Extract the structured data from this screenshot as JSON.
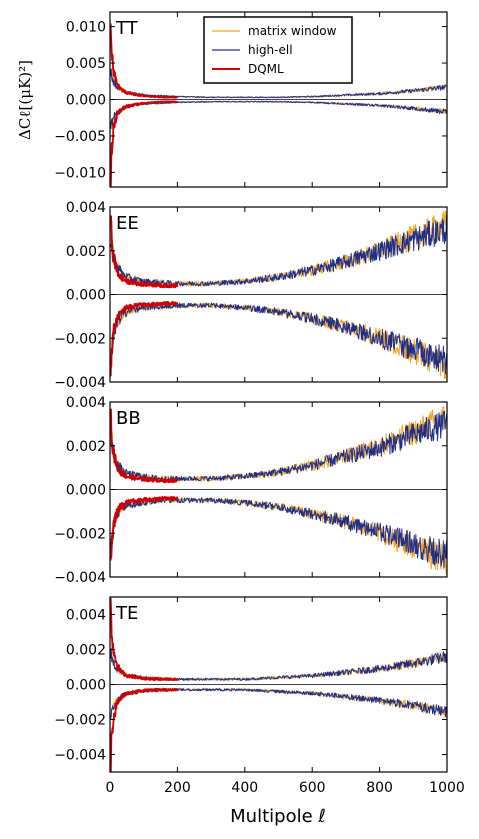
{
  "chart_data": {
    "type": "line",
    "xlabel": "Multipole ℓ",
    "ylabel": "ΔCℓ[(μK)²]",
    "xlim": [
      0,
      1000
    ],
    "xticks": [
      "0",
      "200",
      "400",
      "600",
      "800",
      "1000"
    ],
    "grid": false,
    "legend": {
      "placement": "top-center (TT panel)",
      "entries": [
        "matrix window",
        "high-ell",
        "DQML"
      ]
    },
    "colors": {
      "matrix window": "#f5a623",
      "high-ell": "#1f2f8c",
      "DQML": "#cc0000"
    },
    "panels": [
      {
        "label": "TT",
        "ylim": [
          -0.012,
          0.012
        ],
        "yticks": [
          0.01,
          0.005,
          0.0,
          -0.005,
          -0.01
        ],
        "ytick_labels": [
          "0.010",
          "0.005",
          "0.000",
          "−0.005",
          "−0.010"
        ],
        "series": [
          {
            "name": "high-ell",
            "x": [
              2,
              10,
              20,
              40,
              60,
              100,
              150,
              200,
              300,
              400,
              500,
              600,
              700,
              800,
              900,
              1000
            ],
            "values": [
              0.004,
              0.0025,
              0.0018,
              0.0012,
              0.0009,
              0.0006,
              0.0005,
              0.0004,
              0.0003,
              0.0003,
              0.0003,
              0.0004,
              0.0006,
              0.0008,
              0.0012,
              0.0017
            ]
          },
          {
            "name": "matrix window",
            "x": [
              2,
              10,
              20,
              40,
              60,
              100,
              150,
              200,
              300,
              400,
              500,
              600,
              700,
              800,
              900,
              1000
            ],
            "values": [
              0.004,
              0.0025,
              0.0018,
              0.0012,
              0.0009,
              0.0006,
              0.0005,
              0.0004,
              0.0003,
              0.0003,
              0.0003,
              0.0004,
              0.0006,
              0.0008,
              0.0012,
              0.0017
            ]
          },
          {
            "name": "DQML",
            "x": [
              2,
              5,
              10,
              20,
              30,
              50,
              80,
              120,
              160,
              200
            ],
            "values": [
              0.011,
              0.007,
              0.004,
              0.0022,
              0.0015,
              0.0009,
              0.0006,
              0.0004,
              0.0003,
              0.0003
            ]
          }
        ]
      },
      {
        "label": "EE",
        "ylim": [
          -0.004,
          0.004
        ],
        "yticks": [
          0.004,
          0.002,
          0.0,
          -0.002,
          -0.004
        ],
        "ytick_labels": [
          "0.004",
          "0.002",
          "0.000",
          "−0.002",
          "−0.004"
        ],
        "series": [
          {
            "name": "high-ell",
            "x": [
              2,
              10,
              20,
              40,
              60,
              100,
              150,
              200,
              300,
              400,
              500,
              600,
              700,
              800,
              900,
              1000
            ],
            "values": [
              0.0028,
              0.0018,
              0.0013,
              0.0009,
              0.00075,
              0.0006,
              0.00055,
              0.0005,
              0.0005,
              0.0006,
              0.0008,
              0.0011,
              0.0015,
              0.002,
              0.0025,
              0.003
            ]
          },
          {
            "name": "matrix window",
            "x": [
              2,
              10,
              20,
              40,
              60,
              100,
              150,
              200,
              300,
              400,
              500,
              600,
              700,
              800,
              900,
              1000
            ],
            "values": [
              0.0028,
              0.0018,
              0.0013,
              0.0009,
              0.00075,
              0.0006,
              0.00055,
              0.0005,
              0.0005,
              0.0006,
              0.0008,
              0.0011,
              0.0015,
              0.002,
              0.0026,
              0.0032
            ]
          },
          {
            "name": "DQML",
            "x": [
              2,
              5,
              10,
              20,
              30,
              50,
              80,
              120,
              160,
              200
            ],
            "values": [
              0.0035,
              0.0025,
              0.0017,
              0.0011,
              0.0008,
              0.0006,
              0.0005,
              0.00045,
              0.0004,
              0.0004
            ]
          }
        ]
      },
      {
        "label": "BB",
        "ylim": [
          -0.004,
          0.004
        ],
        "yticks": [
          0.004,
          0.002,
          0.0,
          -0.002,
          -0.004
        ],
        "ytick_labels": [
          "0.004",
          "0.002",
          "0.000",
          "−0.002",
          "−0.004"
        ],
        "series": [
          {
            "name": "high-ell",
            "x": [
              2,
              10,
              20,
              40,
              60,
              100,
              150,
              200,
              300,
              400,
              500,
              600,
              700,
              800,
              900,
              1000
            ],
            "values": [
              0.0028,
              0.0018,
              0.0012,
              0.0008,
              0.0007,
              0.0006,
              0.0005,
              0.0005,
              0.0005,
              0.0006,
              0.0008,
              0.0011,
              0.0015,
              0.0019,
              0.0025,
              0.003
            ]
          },
          {
            "name": "matrix window",
            "x": [
              2,
              10,
              20,
              40,
              60,
              100,
              150,
              200,
              300,
              400,
              500,
              600,
              700,
              800,
              900,
              1000
            ],
            "values": [
              0.0028,
              0.0018,
              0.0012,
              0.0008,
              0.0007,
              0.0006,
              0.0005,
              0.0005,
              0.0005,
              0.0006,
              0.0008,
              0.0011,
              0.0015,
              0.002,
              0.0026,
              0.0033
            ]
          },
          {
            "name": "DQML",
            "x": [
              2,
              5,
              10,
              20,
              30,
              50,
              80,
              120,
              160,
              200
            ],
            "values": [
              0.0035,
              0.0025,
              0.0017,
              0.0011,
              0.0008,
              0.0006,
              0.0005,
              0.00045,
              0.0004,
              0.0004
            ]
          }
        ]
      },
      {
        "label": "TE",
        "ylim": [
          -0.005,
          0.005
        ],
        "yticks": [
          0.004,
          0.002,
          0.0,
          -0.002,
          -0.004
        ],
        "ytick_labels": [
          "0.004",
          "0.002",
          "0.000",
          "−0.002",
          "−0.004"
        ],
        "series": [
          {
            "name": "high-ell",
            "x": [
              2,
              10,
              20,
              40,
              60,
              100,
              150,
              200,
              300,
              400,
              500,
              600,
              700,
              800,
              900,
              1000
            ],
            "values": [
              0.0018,
              0.0012,
              0.0009,
              0.0006,
              0.0005,
              0.0004,
              0.00035,
              0.0003,
              0.0003,
              0.0003,
              0.0004,
              0.0005,
              0.0007,
              0.0009,
              0.0012,
              0.0016
            ]
          },
          {
            "name": "matrix window",
            "x": [
              2,
              10,
              20,
              40,
              60,
              100,
              150,
              200,
              300,
              400,
              500,
              600,
              700,
              800,
              900,
              1000
            ],
            "values": [
              0.0018,
              0.0012,
              0.0009,
              0.0006,
              0.0005,
              0.0004,
              0.00035,
              0.0003,
              0.0003,
              0.0003,
              0.0004,
              0.0005,
              0.0007,
              0.0009,
              0.0012,
              0.0016
            ]
          },
          {
            "name": "DQML",
            "x": [
              2,
              5,
              10,
              20,
              30,
              50,
              80,
              120,
              160,
              200
            ],
            "values": [
              0.0045,
              0.003,
              0.002,
              0.0012,
              0.0008,
              0.0005,
              0.0004,
              0.0003,
              0.0003,
              0.0003
            ]
          }
        ]
      }
    ]
  }
}
